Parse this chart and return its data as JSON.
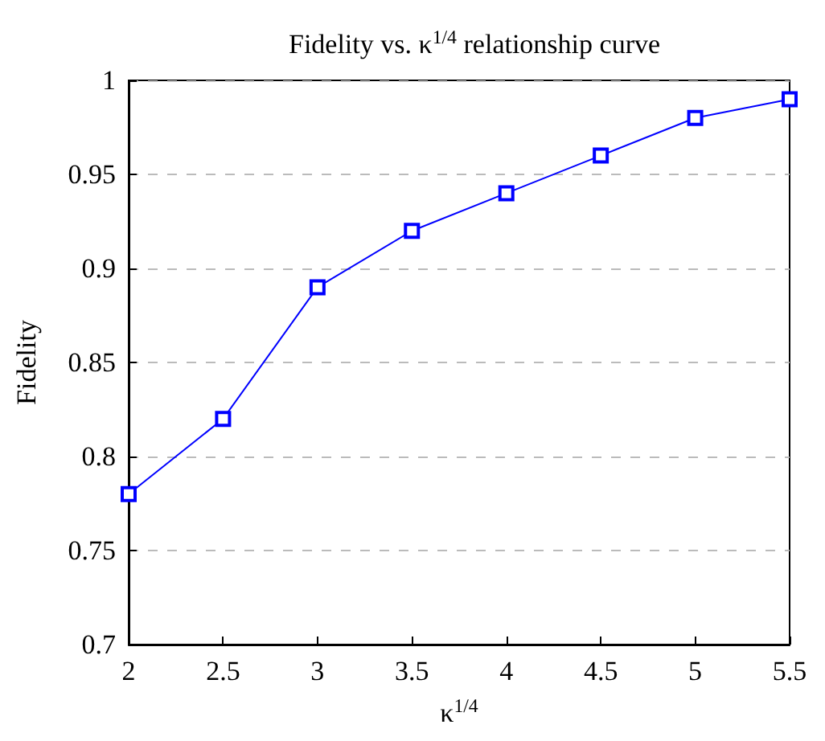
{
  "chart_data": {
    "type": "line",
    "title": "Fidelity vs. κ$^{1/4}$ relationship curve",
    "xlabel": "κ$^{1/4}$",
    "ylabel": "Fidelity",
    "x": [
      2,
      2.5,
      3,
      3.5,
      4,
      4.5,
      5,
      5.5
    ],
    "series": [
      {
        "color": "#0000ff",
        "values": [
          0.78,
          0.82,
          0.89,
          0.92,
          0.94,
          0.96,
          0.98,
          0.99
        ]
      }
    ],
    "xlim": [
      2,
      5.5
    ],
    "xticks": [
      2,
      2.5,
      3,
      3.5,
      4,
      4.5,
      5,
      5.5
    ],
    "ylim": [
      0.7,
      1
    ],
    "yticks": [
      0.7,
      0.75,
      0.8,
      0.85,
      0.9,
      0.95,
      1
    ],
    "grid": "y",
    "marker": "square",
    "line_style": "solid"
  }
}
